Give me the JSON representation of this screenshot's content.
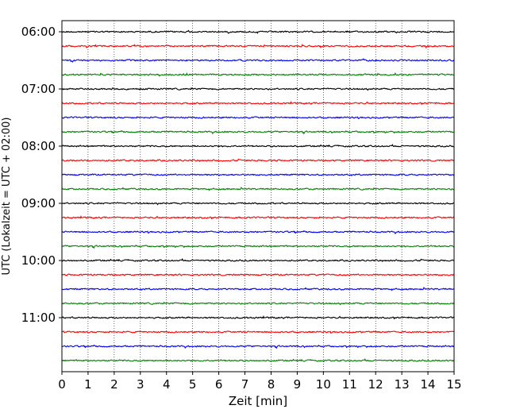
{
  "chart_data": {
    "type": "line",
    "title": "",
    "xlabel": "Zeit  [min]",
    "ylabel": "UTC (Lokalzeit = UTC + 02:00)",
    "xlim": [
      0,
      15
    ],
    "x_ticks": [
      "0",
      "1",
      "2",
      "3",
      "4",
      "5",
      "6",
      "7",
      "8",
      "9",
      "10",
      "11",
      "12",
      "13",
      "14",
      "15"
    ],
    "y_ticks": [
      "06:00",
      "07:00",
      "08:00",
      "09:00",
      "10:00",
      "11:00"
    ],
    "grid": "vertical dotted",
    "trace_interval_minutes": 15,
    "trace_start": "06:00",
    "trace_count": 24,
    "colors": [
      "#000000",
      "#ff0000",
      "#0000ff",
      "#008000"
    ],
    "traces": [
      {
        "start": "06:00",
        "color": "#000000"
      },
      {
        "start": "06:15",
        "color": "#ff0000"
      },
      {
        "start": "06:30",
        "color": "#0000ff"
      },
      {
        "start": "06:45",
        "color": "#008000"
      },
      {
        "start": "07:00",
        "color": "#000000"
      },
      {
        "start": "07:15",
        "color": "#ff0000"
      },
      {
        "start": "07:30",
        "color": "#0000ff"
      },
      {
        "start": "07:45",
        "color": "#008000"
      },
      {
        "start": "08:00",
        "color": "#000000"
      },
      {
        "start": "08:15",
        "color": "#ff0000"
      },
      {
        "start": "08:30",
        "color": "#0000ff"
      },
      {
        "start": "08:45",
        "color": "#008000"
      },
      {
        "start": "09:00",
        "color": "#000000"
      },
      {
        "start": "09:15",
        "color": "#ff0000"
      },
      {
        "start": "09:30",
        "color": "#0000ff"
      },
      {
        "start": "09:45",
        "color": "#008000"
      },
      {
        "start": "10:00",
        "color": "#000000"
      },
      {
        "start": "10:15",
        "color": "#ff0000"
      },
      {
        "start": "10:30",
        "color": "#0000ff"
      },
      {
        "start": "10:45",
        "color": "#008000"
      },
      {
        "start": "11:00",
        "color": "#000000"
      },
      {
        "start": "11:15",
        "color": "#ff0000"
      },
      {
        "start": "11:30",
        "color": "#0000ff"
      },
      {
        "start": "11:45",
        "color": "#008000"
      }
    ]
  }
}
